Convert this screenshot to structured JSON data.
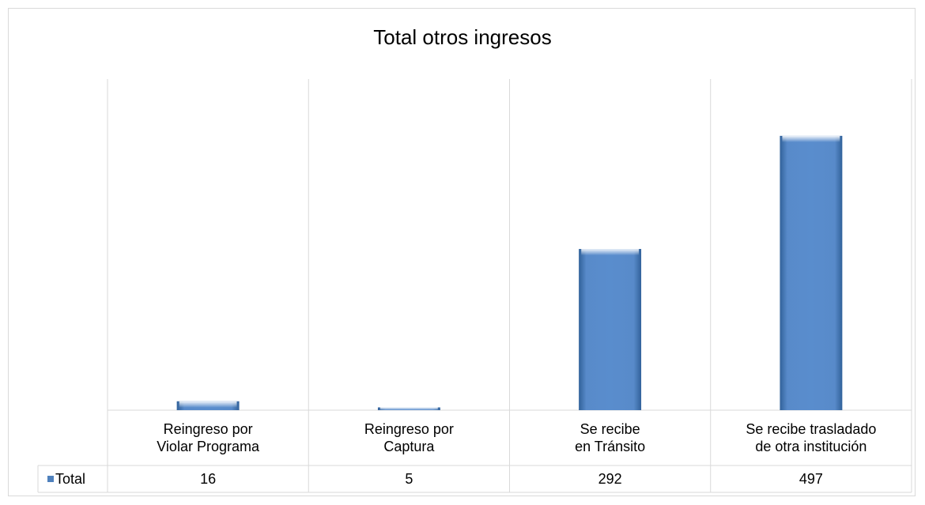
{
  "chart_data": {
    "type": "bar",
    "title": "Total otros ingresos",
    "categories": [
      "Reingreso por\nViolar Programa",
      "Reingreso por\nCaptura",
      "Se recibe\nen Tránsito",
      "Se recibe trasladado\nde otra institución"
    ],
    "series": [
      {
        "name": "Total",
        "color": "#4f81bd",
        "values": [
          16,
          5,
          292,
          497
        ]
      }
    ],
    "ylim": [
      0,
      600
    ],
    "data_table": true
  }
}
